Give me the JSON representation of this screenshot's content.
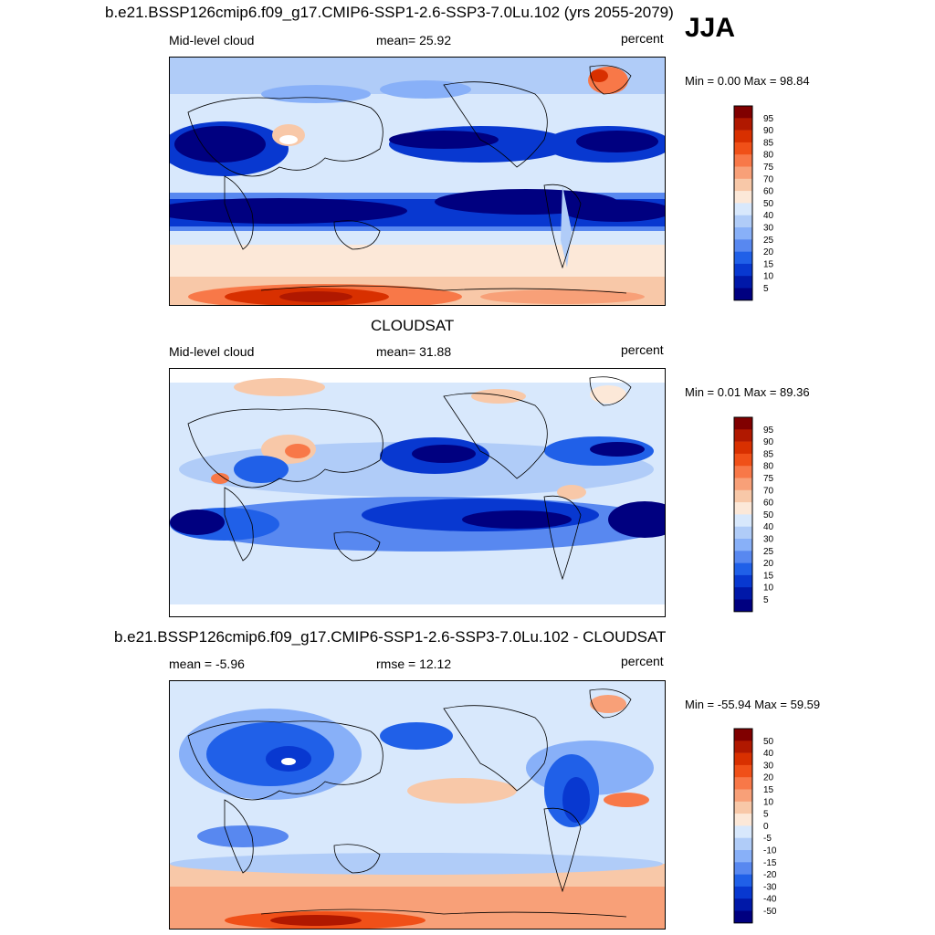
{
  "header": {
    "title": "b.e21.BSSP126cmip6.f09_g17.CMIP6-SSP1-2.6-SSP3-7.0Lu.102 (yrs 2055-2079)",
    "season": "JJA"
  },
  "panels": [
    {
      "id": "model",
      "title": "",
      "left_label": "Mid-level cloud",
      "center_label": "mean=  25.92",
      "units": "percent",
      "minmax": "Min =   0.00 Max =  98.84",
      "colorbar": {
        "levels": [
          "95",
          "90",
          "85",
          "80",
          "75",
          "70",
          "60",
          "50",
          "40",
          "30",
          "25",
          "20",
          "15",
          "10",
          "5"
        ],
        "colors": [
          "#800000",
          "#b01800",
          "#d83000",
          "#f05018",
          "#f87848",
          "#f8a078",
          "#f8c8a8",
          "#fce8d8",
          "#d8e8fc",
          "#b0ccf8",
          "#88b0f8",
          "#5888f0",
          "#2060e8",
          "#0838d0",
          "#0018a8",
          "#000080"
        ]
      }
    },
    {
      "id": "obs",
      "title": "CLOUDSAT",
      "left_label": "Mid-level cloud",
      "center_label": "mean=  31.88",
      "units": "percent",
      "minmax": "Min =   0.01 Max =  89.36",
      "colorbar": {
        "levels": [
          "95",
          "90",
          "85",
          "80",
          "75",
          "70",
          "60",
          "50",
          "40",
          "30",
          "25",
          "20",
          "15",
          "10",
          "5"
        ],
        "colors": [
          "#800000",
          "#b01800",
          "#d83000",
          "#f05018",
          "#f87848",
          "#f8a078",
          "#f8c8a8",
          "#fce8d8",
          "#d8e8fc",
          "#b0ccf8",
          "#88b0f8",
          "#5888f0",
          "#2060e8",
          "#0838d0",
          "#0018a8",
          "#000080"
        ]
      }
    },
    {
      "id": "diff",
      "title": "b.e21.BSSP126cmip6.f09_g17.CMIP6-SSP1-2.6-SSP3-7.0Lu.102 - CLOUDSAT",
      "left_label": "mean =  -5.96",
      "center_label": "rmse =  12.12",
      "units": "percent",
      "minmax": "Min = -55.94 Max =  59.59",
      "colorbar": {
        "levels": [
          "50",
          "40",
          "30",
          "20",
          "15",
          "10",
          "5",
          "0",
          "-5",
          "-10",
          "-15",
          "-20",
          "-30",
          "-40",
          "-50"
        ],
        "colors": [
          "#800000",
          "#b01800",
          "#d83000",
          "#f05018",
          "#f87848",
          "#f8a078",
          "#f8c8a8",
          "#fce8d8",
          "#d8e8fc",
          "#b0ccf8",
          "#88b0f8",
          "#5888f0",
          "#2060e8",
          "#0838d0",
          "#0018a8",
          "#000080"
        ]
      }
    }
  ],
  "chart_data": [
    {
      "type": "heatmap",
      "title": "b.e21.BSSP126cmip6.f09_g17.CMIP6-SSP1-2.6-SSP3-7.0Lu.102 (yrs 2055-2079)",
      "variable": "Mid-level cloud",
      "season": "JJA",
      "units": "percent",
      "mean": 25.92,
      "min": 0.0,
      "max": 98.84,
      "contour_levels": [
        5,
        10,
        15,
        20,
        25,
        30,
        40,
        50,
        60,
        70,
        75,
        80,
        85,
        90,
        95
      ]
    },
    {
      "type": "heatmap",
      "title": "CLOUDSAT",
      "variable": "Mid-level cloud",
      "units": "percent",
      "mean": 31.88,
      "min": 0.01,
      "max": 89.36,
      "contour_levels": [
        5,
        10,
        15,
        20,
        25,
        30,
        40,
        50,
        60,
        70,
        75,
        80,
        85,
        90,
        95
      ]
    },
    {
      "type": "heatmap",
      "title": "b.e21.BSSP126cmip6.f09_g17.CMIP6-SSP1-2.6-SSP3-7.0Lu.102 - CLOUDSAT",
      "units": "percent",
      "mean": -5.96,
      "rmse": 12.12,
      "min": -55.94,
      "max": 59.59,
      "contour_levels": [
        -50,
        -40,
        -30,
        -20,
        -15,
        -10,
        -5,
        0,
        5,
        10,
        15,
        20,
        30,
        40,
        50
      ]
    }
  ]
}
